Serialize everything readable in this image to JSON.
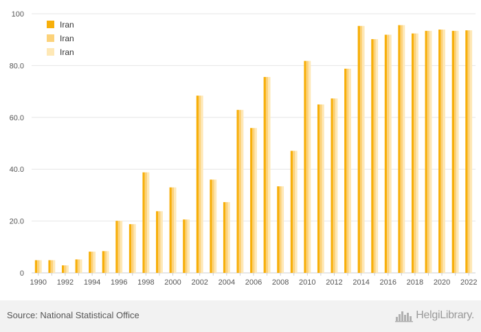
{
  "chart_data": {
    "type": "bar",
    "categories": [
      "1990",
      "1991",
      "1992",
      "1993",
      "1994",
      "1995",
      "1996",
      "1997",
      "1998",
      "1999",
      "2000",
      "2001",
      "2002",
      "2003",
      "2004",
      "2005",
      "2006",
      "2007",
      "2008",
      "2009",
      "2010",
      "2011",
      "2012",
      "2013",
      "2014",
      "2015",
      "2016",
      "2017",
      "2018",
      "2019",
      "2020",
      "2021",
      "2022"
    ],
    "x_tick_labels": [
      "1990",
      "1992",
      "1994",
      "1996",
      "1998",
      "2000",
      "2002",
      "2004",
      "2006",
      "2008",
      "2010",
      "2012",
      "2014",
      "2016",
      "2018",
      "2020",
      "2022"
    ],
    "y_tick_labels": [
      "0",
      "20.0",
      "40.0",
      "60.0",
      "80.0",
      "100"
    ],
    "y_ticks": [
      0,
      20,
      40,
      60,
      80,
      100
    ],
    "ylim": [
      0,
      100
    ],
    "grid": true,
    "legend_position": "top-left",
    "series": [
      {
        "name": "Iran",
        "color": "#F7AF0A",
        "values": [
          4.9,
          4.9,
          2.9,
          5.2,
          8.2,
          8.4,
          20.1,
          18.8,
          38.8,
          23.8,
          33.0,
          20.6,
          68.4,
          36.0,
          27.3,
          62.9,
          55.9,
          75.6,
          33.4,
          47.1,
          81.8,
          65.0,
          67.3,
          78.8,
          95.3,
          90.2,
          91.9,
          95.6,
          92.4,
          93.4,
          93.9,
          93.4,
          93.6
        ]
      },
      {
        "name": "Iran",
        "color": "#FCD27A",
        "values": [
          4.9,
          4.9,
          2.9,
          5.2,
          8.2,
          8.4,
          20.1,
          18.8,
          38.8,
          23.8,
          33.0,
          20.6,
          68.4,
          36.0,
          27.3,
          62.9,
          55.9,
          75.6,
          33.4,
          47.1,
          81.8,
          65.0,
          67.3,
          78.8,
          95.3,
          90.2,
          91.9,
          95.6,
          92.4,
          93.4,
          93.9,
          93.4,
          93.6
        ]
      },
      {
        "name": "Iran",
        "color": "#FEE8B6",
        "values": [
          4.9,
          4.9,
          2.9,
          5.2,
          8.2,
          8.4,
          20.1,
          18.8,
          38.8,
          23.8,
          33.0,
          20.6,
          68.4,
          36.0,
          27.3,
          62.9,
          55.9,
          75.6,
          33.4,
          47.1,
          81.8,
          65.0,
          67.3,
          78.8,
          95.3,
          90.2,
          91.9,
          95.6,
          92.4,
          93.4,
          93.9,
          93.4,
          93.6
        ]
      }
    ]
  },
  "footer": {
    "source": "Source: National Statistical Office",
    "brand": "HelgiLibrary."
  },
  "icons": {
    "brand_logo": "helgi-city-logo-icon"
  },
  "colors": {
    "grid": "#e6e6e6",
    "axis": "#cccccc",
    "tick_text": "#555555",
    "footer_bg": "#f2f2f2",
    "brand": "#9a9a9a"
  }
}
